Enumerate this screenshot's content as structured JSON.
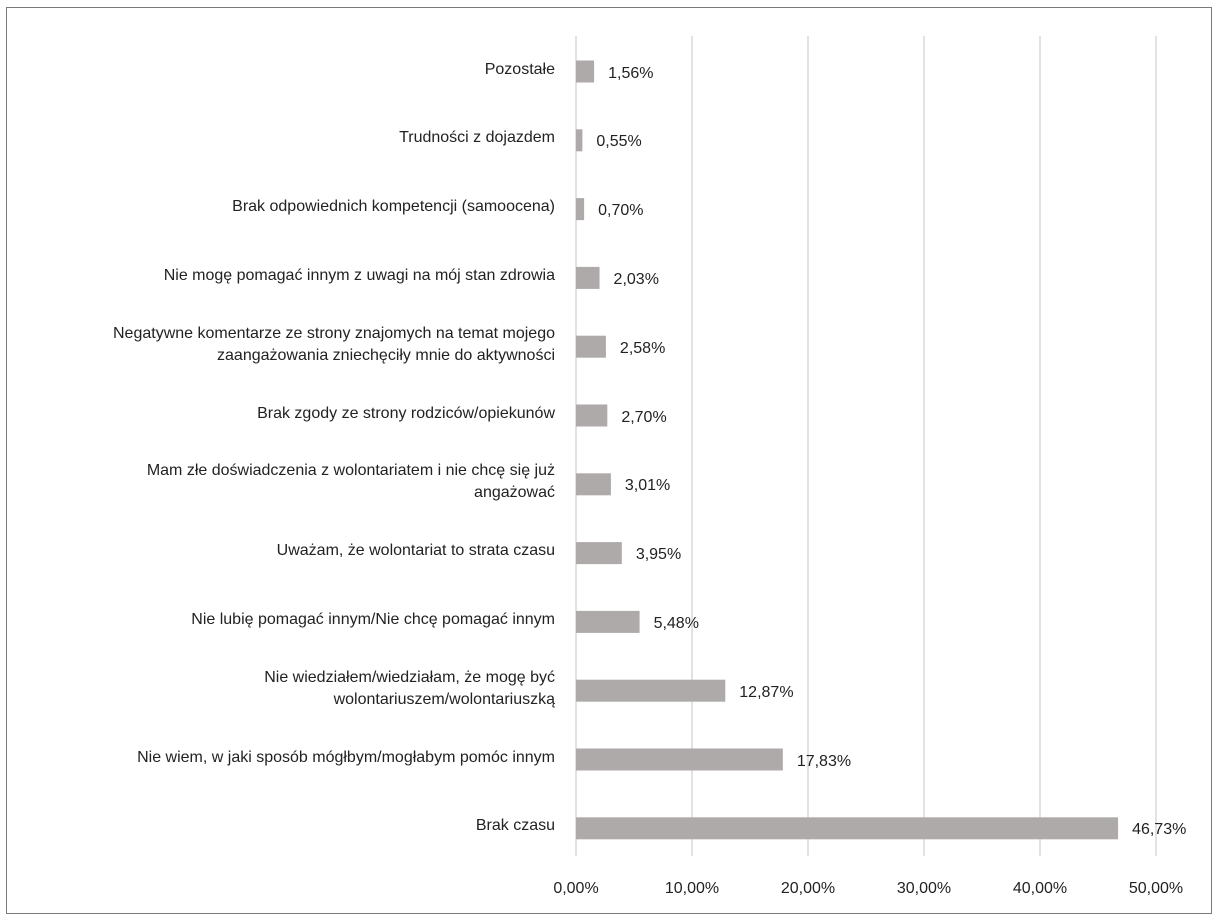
{
  "chart_data": {
    "type": "bar",
    "orientation": "horizontal",
    "categories": [
      "Pozostałe",
      "Trudności z dojazdem",
      "Brak odpowiednich kompetencji (samoocena)",
      "Nie mogę pomagać innym z uwagi na mój stan zdrowia",
      "Negatywne komentarze ze strony znajomych na temat mojego zaangażowania zniechęciły mnie do aktywności",
      "Brak zgody ze strony rodziców/opiekunów",
      "Mam złe doświadczenia z wolontariatem i nie chcę się już angażować",
      "Uważam, że wolontariat to strata czasu",
      "Nie lubię pomagać innym/Nie chcę pomagać innym",
      "Nie wiedziałem/wiedziałam, że mogę być wolontariuszem/wolontariuszką",
      "Nie wiem, w jaki sposób mógłbym/mogłabym pomóc innym",
      "Brak czasu"
    ],
    "category_lines": [
      [
        "Pozostałe"
      ],
      [
        "Trudności z dojazdem"
      ],
      [
        "Brak odpowiednich kompetencji (samoocena)"
      ],
      [
        "Nie mogę pomagać innym z uwagi na mój stan zdrowia"
      ],
      [
        "Negatywne komentarze ze strony znajomych na temat mojego",
        "zaangażowania zniechęciły mnie do aktywności"
      ],
      [
        "Brak zgody ze strony rodziców/opiekunów"
      ],
      [
        "Mam złe doświadczenia z wolontariatem i nie chcę się już",
        "angażować"
      ],
      [
        "Uważam, że wolontariat to strata czasu"
      ],
      [
        "Nie lubię pomagać innym/Nie chcę pomagać innym"
      ],
      [
        "Nie wiedziałem/wiedziałam, że mogę być",
        "wolontariuszem/wolontariuszką"
      ],
      [
        "Nie wiem, w jaki sposób mógłbym/mogłabym pomóc innym"
      ],
      [
        "Brak czasu"
      ]
    ],
    "values": [
      1.56,
      0.55,
      0.7,
      2.03,
      2.58,
      2.7,
      3.01,
      3.95,
      5.48,
      12.87,
      17.83,
      46.73
    ],
    "value_labels": [
      "1,56%",
      "0,55%",
      "0,70%",
      "2,03%",
      "2,58%",
      "2,70%",
      "3,01%",
      "3,95%",
      "5,48%",
      "12,87%",
      "17,83%",
      "46,73%"
    ],
    "xlim": [
      0,
      50
    ],
    "xticks": [
      0,
      10,
      20,
      30,
      40,
      50
    ],
    "xtick_labels": [
      "0,00%",
      "10,00%",
      "20,00%",
      "30,00%",
      "40,00%",
      "50,00%"
    ],
    "grid": true,
    "legend": "none",
    "bar_color": "#aeaaaa",
    "grid_color": "#d9d9d9",
    "title": "",
    "xlabel": "",
    "ylabel": ""
  }
}
